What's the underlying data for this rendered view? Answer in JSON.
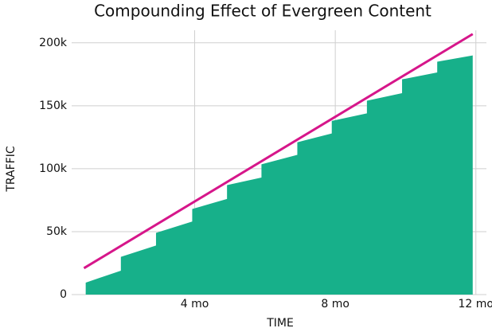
{
  "chart_data": {
    "type": "area",
    "title": "Compounding Effect of Evergreen Content",
    "x_label": "TIME",
    "y_label": "TRAFFIC",
    "xlim": [
      0.5,
      12.3
    ],
    "ylim": [
      0,
      210000
    ],
    "xticks": [
      {
        "value": 4,
        "label": "4 mo"
      },
      {
        "value": 8,
        "label": "8 mo"
      },
      {
        "value": 12,
        "label": "12 mo"
      }
    ],
    "yticks": [
      0,
      {
        "value": 50000,
        "label": "50k"
      },
      {
        "value": 100000,
        "label": "100k"
      },
      {
        "value": 150000,
        "label": "150k"
      },
      {
        "value": 200000,
        "label": "200k"
      }
    ],
    "grid": true,
    "series": [
      {
        "type": "area",
        "color": "#17b08a",
        "x": [
          0.9,
          1.9,
          1.9,
          2.9,
          2.9,
          3.93,
          3.93,
          4.92,
          4.92,
          5.9,
          5.9,
          6.92,
          6.92,
          7.9,
          7.9,
          8.9,
          8.9,
          9.9,
          9.9,
          10.9,
          10.9,
          11.91
        ],
        "values": [
          9500,
          19000,
          30000,
          39000,
          49000,
          58000,
          68000,
          76000,
          87000,
          93000,
          103500,
          111000,
          121000,
          128000,
          138000,
          144000,
          154000,
          160000,
          171000,
          176500,
          185000,
          190000
        ]
      },
      {
        "type": "line",
        "color": "#d6168a",
        "x": [
          0.85,
          11.91
        ],
        "values": [
          21000,
          207000
        ]
      }
    ]
  }
}
